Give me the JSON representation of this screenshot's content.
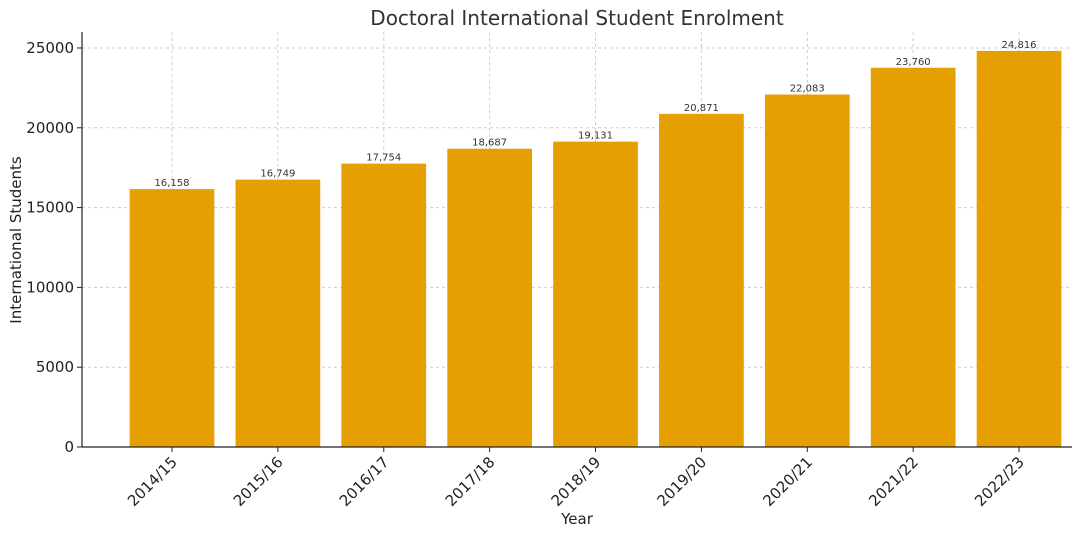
{
  "chart_data": {
    "type": "bar",
    "title": "Doctoral International Student Enrolment",
    "xlabel": "Year",
    "ylabel": "International Students",
    "categories": [
      "2014/15",
      "2015/16",
      "2016/17",
      "2017/18",
      "2018/19",
      "2019/20",
      "2020/21",
      "2021/22",
      "2022/23"
    ],
    "values": [
      16158,
      16749,
      17754,
      18687,
      19131,
      20871,
      22083,
      23760,
      24816
    ],
    "value_labels": [
      "16,158",
      "16,749",
      "17,754",
      "18,687",
      "19,131",
      "20,871",
      "22,083",
      "23,760",
      "24,816"
    ],
    "y_ticks": [
      0,
      5000,
      10000,
      15000,
      20000,
      25000
    ],
    "y_tick_labels": [
      "0",
      "5000",
      "10000",
      "15000",
      "20000",
      "25000"
    ],
    "ylim": [
      0,
      26000
    ],
    "grid": true,
    "bar_color": "#E69F00"
  }
}
